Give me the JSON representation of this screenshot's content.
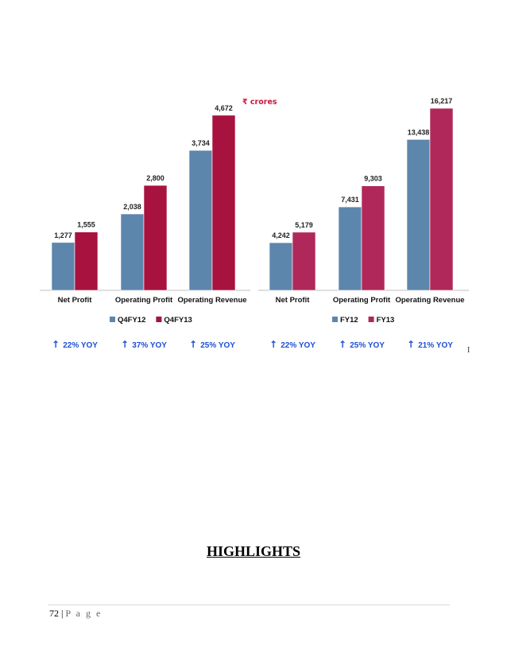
{
  "page": {
    "heading": "HIGHLIGHTS",
    "page_number": "72",
    "page_sep": "|",
    "page_word": "P a g e",
    "stray_mark": "I"
  },
  "colors": {
    "prev_year": "#5d86ad",
    "curr_year_q": "#a8123f",
    "curr_year_fy": "#b02859",
    "yoy_text": "#1e4fd6",
    "unit_text": "#c9183f"
  },
  "chart_data": [
    {
      "type": "bar",
      "unit_label": "₹ crores",
      "categories": [
        "Net Profit",
        "Operating Profit",
        "Operating Revenue"
      ],
      "series": [
        {
          "name": "Q4FY12",
          "values": [
            1277,
            2038,
            3734
          ],
          "labels": [
            "1,277",
            "2,038",
            "3,734"
          ]
        },
        {
          "name": "Q4FY13",
          "values": [
            1555,
            2800,
            4672
          ],
          "labels": [
            "1,555",
            "2,800",
            "4,672"
          ]
        }
      ],
      "growth": [
        "22% YOY",
        "37% YOY",
        "25% YOY"
      ],
      "growth_arrow": "↑",
      "ylim": [
        0,
        5200
      ],
      "legend": "bottom",
      "grid": false
    },
    {
      "type": "bar",
      "categories": [
        "Net Profit",
        "Operating Profit",
        "Operating Revenue"
      ],
      "series": [
        {
          "name": "FY12",
          "values": [
            4242,
            7431,
            13438
          ],
          "labels": [
            "4,242",
            "7,431",
            "13,438"
          ]
        },
        {
          "name": "FY13",
          "values": [
            5179,
            9303,
            16217
          ],
          "labels": [
            "5,179",
            "9,303",
            "16,217"
          ]
        }
      ],
      "growth": [
        "22% YOY",
        "25% YOY",
        "21% YOY"
      ],
      "growth_arrow": "↑",
      "ylim": [
        0,
        17500
      ],
      "legend": "bottom",
      "grid": false
    }
  ]
}
